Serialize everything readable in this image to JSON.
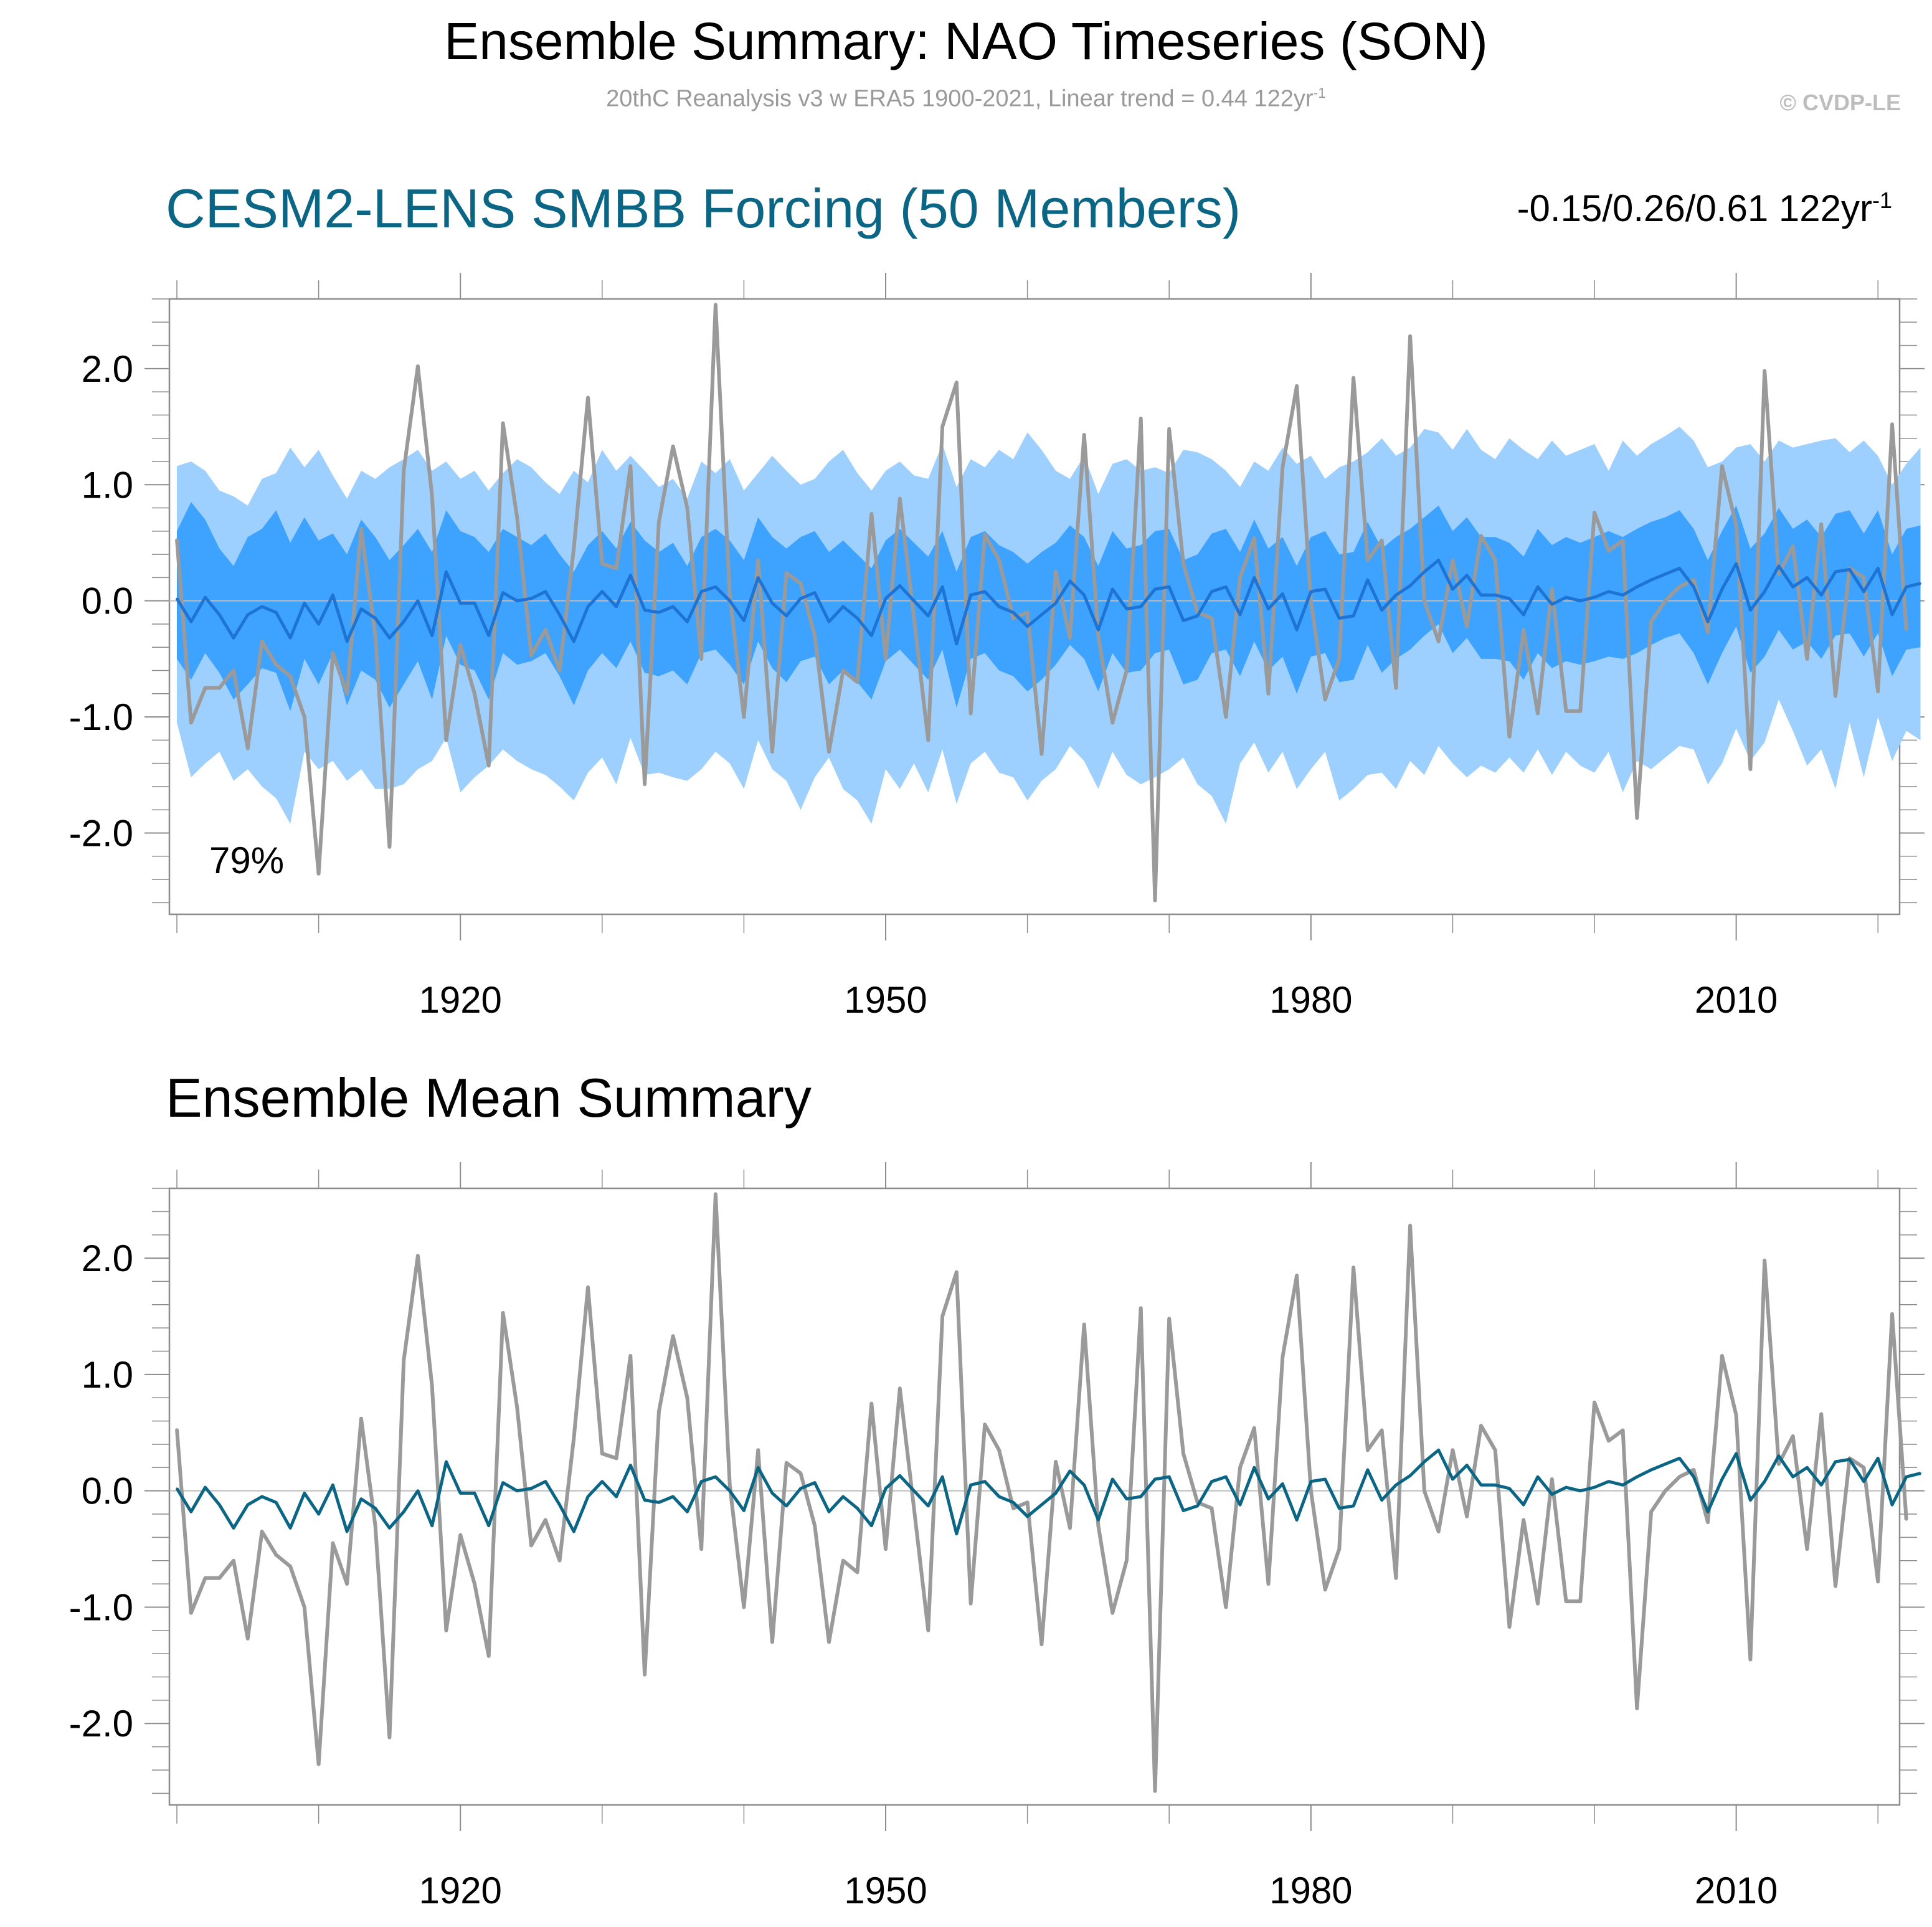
{
  "header": {
    "title": "Ensemble Summary: NAO Timeseries (SON)",
    "subtitle": "20thC Reanalysis v3 w ERA5 1900-2021, Linear trend = 0.44 122yr",
    "subtitle_sup": "-1",
    "copyright": "© CVDP-LE"
  },
  "panel1": {
    "title": "CESM2-LENS SMBB Forcing (50 Members)",
    "trend_range": "-0.15/0.26/0.61 122yr",
    "trend_range_sup": "-1",
    "percent_label": "79%"
  },
  "panel2": {
    "title": "Ensemble Mean Summary"
  },
  "colors": {
    "observations": "#9a9a9a",
    "outer_band": "#9dcfff",
    "inner_band": "#3ea2ff",
    "ensemble_mean_panel1": "#1e74d4",
    "ensemble_mean_panel2": "#0b6585",
    "zero_line": "#bcbcbc",
    "axis": "#8c8c8c"
  },
  "chart_data": [
    {
      "type": "line",
      "panel": "panel1",
      "title": "CESM2-LENS SMBB Forcing (50 Members)",
      "xlabel": "",
      "ylabel": "",
      "xlim": [
        1900,
        2021
      ],
      "ylim": [
        -2.7,
        2.6
      ],
      "x_ticks": [
        1920,
        1950,
        1980,
        2010
      ],
      "x_tick_labels": [
        "1920",
        "1950",
        "1980",
        "2010"
      ],
      "y_ticks": [
        -2.0,
        -1.0,
        0.0,
        1.0,
        2.0
      ],
      "y_tick_labels": [
        "-2.0",
        "-1.0",
        "0.0",
        "1.0",
        "2.0"
      ],
      "x_start": 1900,
      "series": [
        {
          "name": "20thC Reanalysis v3 w ERA5 (observations)",
          "values": [
            0.53,
            -1.05,
            -0.75,
            -0.75,
            -0.6,
            -1.27,
            -0.35,
            -0.55,
            -0.65,
            -1.0,
            -2.35,
            -0.45,
            -0.8,
            0.62,
            -0.3,
            -2.12,
            1.12,
            2.02,
            0.9,
            -1.2,
            -0.38,
            -0.8,
            -1.42,
            1.53,
            0.72,
            -0.47,
            -0.25,
            -0.6,
            0.45,
            1.75,
            0.32,
            0.28,
            1.16,
            -1.58,
            0.68,
            1.33,
            0.8,
            -0.5,
            2.55,
            0.05,
            -1.0,
            0.35,
            -1.3,
            0.24,
            0.15,
            -0.3,
            -1.3,
            -0.6,
            -0.7,
            0.75,
            -0.5,
            0.88,
            -0.15,
            -1.2,
            1.5,
            1.88,
            -0.97,
            0.57,
            0.35,
            -0.15,
            -0.1,
            -1.32,
            0.25,
            -0.32,
            1.43,
            -0.3,
            -1.05,
            -0.6,
            1.57,
            -2.58,
            1.48,
            0.32,
            -0.1,
            -0.15,
            -1.0,
            0.2,
            0.54,
            -0.8,
            1.15,
            1.85,
            0.0,
            -0.85,
            -0.5,
            1.92,
            0.35,
            0.52,
            -0.75,
            2.28,
            0.0,
            -0.35,
            0.35,
            -0.22,
            0.56,
            0.35,
            -1.17,
            -0.25,
            -0.97,
            0.1,
            -0.95,
            -0.95,
            0.76,
            0.43,
            0.52,
            -1.87,
            -0.18,
            0.0,
            0.12,
            0.18,
            -0.27,
            1.16,
            0.65,
            -1.45,
            1.98,
            0.23,
            0.47,
            -0.5,
            0.66,
            -0.82,
            0.28,
            0.2,
            -0.78,
            1.52,
            -0.25
          ]
        },
        {
          "name": "Ensemble Mean",
          "values": [
            0.02,
            -0.18,
            0.03,
            -0.12,
            -0.32,
            -0.12,
            -0.05,
            -0.1,
            -0.32,
            -0.02,
            -0.2,
            0.05,
            -0.35,
            -0.07,
            -0.15,
            -0.32,
            -0.18,
            0.0,
            -0.3,
            0.25,
            -0.02,
            -0.02,
            -0.3,
            0.07,
            0.0,
            0.02,
            0.08,
            -0.12,
            -0.35,
            -0.05,
            0.08,
            -0.05,
            0.22,
            -0.08,
            -0.1,
            -0.05,
            -0.18,
            0.08,
            0.12,
            0.0,
            -0.17,
            0.2,
            -0.02,
            -0.13,
            0.02,
            0.07,
            -0.18,
            -0.05,
            -0.15,
            -0.3,
            0.02,
            0.13,
            0.0,
            -0.13,
            0.12,
            -0.37,
            0.05,
            0.08,
            -0.05,
            -0.1,
            -0.22,
            -0.12,
            -0.02,
            0.17,
            0.05,
            -0.25,
            0.1,
            -0.07,
            -0.05,
            0.1,
            0.12,
            -0.17,
            -0.13,
            0.08,
            0.12,
            -0.12,
            0.2,
            -0.07,
            0.06,
            -0.25,
            0.08,
            0.1,
            -0.15,
            -0.13,
            0.18,
            -0.08,
            0.05,
            0.13,
            0.25,
            0.35,
            0.1,
            0.22,
            0.05,
            0.05,
            0.02,
            -0.12,
            0.12,
            -0.03,
            0.03,
            0.0,
            0.03,
            0.08,
            0.05,
            0.12,
            0.18,
            0.23,
            0.28,
            0.12,
            -0.18,
            0.1,
            0.32,
            -0.08,
            0.08,
            0.3,
            0.12,
            0.2,
            0.05,
            0.25,
            0.27,
            0.08,
            0.28,
            -0.12,
            0.12,
            0.15
          ]
        },
        {
          "name": "Ensemble 75% upper",
          "values": [
            0.6,
            0.85,
            0.7,
            0.45,
            0.3,
            0.55,
            0.62,
            0.78,
            0.5,
            0.72,
            0.52,
            0.58,
            0.4,
            0.7,
            0.55,
            0.35,
            0.48,
            0.62,
            0.42,
            0.78,
            0.6,
            0.55,
            0.42,
            0.62,
            0.55,
            0.48,
            0.58,
            0.4,
            0.25,
            0.48,
            0.6,
            0.45,
            0.68,
            0.52,
            0.42,
            0.5,
            0.3,
            0.55,
            0.62,
            0.52,
            0.35,
            0.72,
            0.55,
            0.45,
            0.55,
            0.6,
            0.42,
            0.52,
            0.4,
            0.28,
            0.52,
            0.62,
            0.5,
            0.38,
            0.6,
            0.25,
            0.55,
            0.6,
            0.48,
            0.42,
            0.32,
            0.42,
            0.5,
            0.65,
            0.55,
            0.3,
            0.6,
            0.45,
            0.48,
            0.6,
            0.62,
            0.35,
            0.4,
            0.58,
            0.62,
            0.42,
            0.7,
            0.45,
            0.55,
            0.3,
            0.55,
            0.6,
            0.4,
            0.42,
            0.68,
            0.45,
            0.55,
            0.62,
            0.72,
            0.82,
            0.6,
            0.72,
            0.55,
            0.55,
            0.5,
            0.38,
            0.62,
            0.48,
            0.55,
            0.5,
            0.55,
            0.6,
            0.55,
            0.62,
            0.68,
            0.72,
            0.78,
            0.62,
            0.35,
            0.6,
            0.82,
            0.45,
            0.58,
            0.8,
            0.62,
            0.7,
            0.55,
            0.75,
            0.78,
            0.58,
            0.78,
            0.4,
            0.62,
            0.65
          ]
        },
        {
          "name": "Ensemble 25% lower",
          "values": [
            -0.5,
            -0.68,
            -0.45,
            -0.62,
            -0.85,
            -0.72,
            -0.58,
            -0.62,
            -0.95,
            -0.5,
            -0.72,
            -0.45,
            -0.9,
            -0.6,
            -0.68,
            -0.92,
            -0.72,
            -0.52,
            -0.85,
            -0.3,
            -0.55,
            -0.6,
            -0.85,
            -0.45,
            -0.55,
            -0.52,
            -0.45,
            -0.65,
            -0.9,
            -0.6,
            -0.45,
            -0.58,
            -0.35,
            -0.62,
            -0.65,
            -0.6,
            -0.72,
            -0.45,
            -0.42,
            -0.55,
            -0.72,
            -0.35,
            -0.58,
            -0.7,
            -0.52,
            -0.48,
            -0.72,
            -0.6,
            -0.7,
            -0.85,
            -0.52,
            -0.42,
            -0.55,
            -0.68,
            -0.42,
            -0.92,
            -0.5,
            -0.45,
            -0.6,
            -0.65,
            -0.78,
            -0.68,
            -0.55,
            -0.38,
            -0.5,
            -0.78,
            -0.45,
            -0.62,
            -0.6,
            -0.45,
            -0.42,
            -0.72,
            -0.68,
            -0.45,
            -0.42,
            -0.65,
            -0.35,
            -0.6,
            -0.48,
            -0.8,
            -0.48,
            -0.45,
            -0.7,
            -0.68,
            -0.38,
            -0.62,
            -0.5,
            -0.42,
            -0.3,
            -0.2,
            -0.45,
            -0.32,
            -0.5,
            -0.5,
            -0.52,
            -0.68,
            -0.45,
            -0.58,
            -0.52,
            -0.55,
            -0.52,
            -0.48,
            -0.5,
            -0.45,
            -0.38,
            -0.32,
            -0.28,
            -0.45,
            -0.72,
            -0.45,
            -0.22,
            -0.62,
            -0.48,
            -0.25,
            -0.42,
            -0.35,
            -0.5,
            -0.3,
            -0.28,
            -0.48,
            -0.28,
            -0.65,
            -0.42,
            -0.4
          ]
        },
        {
          "name": "Ensemble 10% lower",
          "values": [
            -1.05,
            -1.52,
            -1.4,
            -1.3,
            -1.55,
            -1.45,
            -1.6,
            -1.7,
            -1.92,
            -1.3,
            -1.45,
            -1.38,
            -1.55,
            -1.45,
            -1.62,
            -1.62,
            -1.58,
            -1.45,
            -1.38,
            -1.18,
            -1.65,
            -1.52,
            -1.42,
            -1.28,
            -1.38,
            -1.45,
            -1.5,
            -1.6,
            -1.72,
            -1.48,
            -1.35,
            -1.58,
            -1.18,
            -1.5,
            -1.48,
            -1.52,
            -1.55,
            -1.45,
            -1.3,
            -1.4,
            -1.62,
            -1.2,
            -1.45,
            -1.55,
            -1.8,
            -1.52,
            -1.35,
            -1.62,
            -1.72,
            -1.92,
            -1.45,
            -1.62,
            -1.4,
            -1.65,
            -1.28,
            -1.75,
            -1.4,
            -1.3,
            -1.48,
            -1.52,
            -1.72,
            -1.55,
            -1.45,
            -1.25,
            -1.38,
            -1.62,
            -1.3,
            -1.5,
            -1.58,
            -1.52,
            -1.45,
            -1.35,
            -1.58,
            -1.68,
            -1.92,
            -1.4,
            -1.22,
            -1.48,
            -1.3,
            -1.62,
            -1.45,
            -1.3,
            -1.72,
            -1.62,
            -1.5,
            -1.48,
            -1.62,
            -1.38,
            -1.5,
            -1.25,
            -1.4,
            -1.52,
            -1.42,
            -1.48,
            -1.35,
            -1.48,
            -1.28,
            -1.5,
            -1.3,
            -1.42,
            -1.48,
            -1.3,
            -1.65,
            -1.38,
            -1.45,
            -1.35,
            -1.25,
            -1.28,
            -1.58,
            -1.4,
            -1.1,
            -1.38,
            -1.22,
            -0.85,
            -1.12,
            -1.42,
            -1.28,
            -1.62,
            -1.05,
            -1.52,
            -1.0,
            -1.38,
            -1.12,
            -1.2
          ]
        },
        {
          "name": "Ensemble 90% upper",
          "values": [
            1.16,
            1.2,
            1.12,
            0.95,
            0.9,
            0.82,
            1.05,
            1.1,
            1.32,
            1.15,
            1.3,
            1.08,
            0.88,
            1.12,
            1.05,
            1.15,
            1.22,
            1.3,
            1.12,
            1.2,
            1.05,
            1.12,
            0.95,
            1.1,
            1.22,
            1.15,
            1.02,
            0.92,
            1.12,
            1.02,
            1.3,
            1.12,
            1.25,
            1.12,
            0.98,
            1.05,
            0.88,
            1.2,
            1.1,
            1.22,
            0.95,
            1.1,
            1.25,
            1.12,
            1.0,
            1.05,
            1.2,
            1.3,
            1.1,
            0.95,
            1.12,
            1.2,
            1.08,
            1.05,
            1.35,
            0.98,
            1.22,
            1.15,
            1.3,
            1.22,
            1.45,
            1.3,
            1.12,
            1.05,
            1.25,
            0.92,
            1.18,
            1.22,
            1.12,
            1.15,
            1.1,
            1.3,
            1.28,
            1.22,
            1.12,
            0.98,
            1.2,
            1.12,
            1.32,
            1.18,
            1.25,
            1.05,
            1.15,
            1.2,
            1.28,
            1.4,
            1.25,
            1.32,
            1.48,
            1.45,
            1.3,
            1.48,
            1.3,
            1.22,
            1.4,
            1.3,
            1.22,
            1.38,
            1.25,
            1.3,
            1.35,
            1.12,
            1.38,
            1.25,
            1.35,
            1.42,
            1.5,
            1.38,
            1.15,
            1.2,
            1.32,
            1.35,
            1.2,
            1.38,
            1.32,
            1.35,
            1.38,
            1.4,
            1.28,
            1.38,
            1.25,
            1.0,
            1.18,
            1.32
          ]
        }
      ]
    },
    {
      "type": "line",
      "panel": "panel2",
      "title": "Ensemble Mean Summary",
      "xlabel": "",
      "ylabel": "",
      "xlim": [
        1900,
        2021
      ],
      "ylim": [
        -2.7,
        2.6
      ],
      "x_ticks": [
        1920,
        1950,
        1980,
        2010
      ],
      "x_tick_labels": [
        "1920",
        "1950",
        "1980",
        "2010"
      ],
      "y_ticks": [
        -2.0,
        -1.0,
        0.0,
        1.0,
        2.0
      ],
      "y_tick_labels": [
        "-2.0",
        "-1.0",
        "0.0",
        "1.0",
        "2.0"
      ],
      "x_start": 1900,
      "series_ref": [
        "20thC Reanalysis v3 w ERA5 (observations)",
        "Ensemble Mean"
      ]
    }
  ]
}
